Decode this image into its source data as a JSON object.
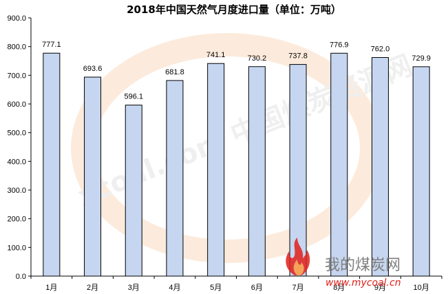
{
  "chart_data": {
    "type": "bar",
    "title": "2018年中国天然气月度进口量（单位：万吨）",
    "categories": [
      "1月",
      "2月",
      "3月",
      "4月",
      "5月",
      "6月",
      "7月",
      "8月",
      "9月",
      "10月"
    ],
    "values": [
      777.1,
      693.6,
      596.1,
      681.8,
      741.1,
      730.2,
      737.8,
      776.9,
      762.0,
      729.9
    ],
    "data_labels": [
      "777.1",
      "693.6",
      "596.1",
      "681.8",
      "741.1",
      "730.2",
      "737.8",
      "776.9",
      "762.0",
      "729.9"
    ],
    "ylim": [
      0,
      900
    ],
    "y_ticks": [
      "0.0",
      "100.0",
      "200.0",
      "300.0",
      "400.0",
      "500.0",
      "600.0",
      "700.0",
      "800.0",
      "900.0"
    ],
    "grid": false,
    "legend": "none",
    "colors": {
      "bar_fill": "#c6d6f0",
      "bar_stroke": "#000000",
      "axis": "#000000"
    }
  },
  "watermark": {
    "logo_text": "我的煤炭网",
    "url": "www.mycoal.cn",
    "background_text": "xcoal.com 中国煤炭资源网",
    "colors": {
      "orange": "#f08a2a",
      "red": "#e0201a",
      "gray": "#7f7f7f"
    }
  }
}
